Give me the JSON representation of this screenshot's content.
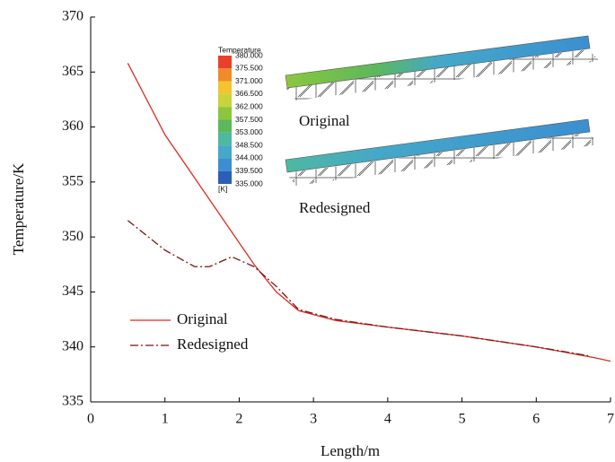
{
  "chart_data": {
    "type": "line",
    "x_label": "Length/m",
    "y_label": "Temperature/K",
    "xlim": [
      0,
      7
    ],
    "xticks": [
      0,
      1,
      2,
      3,
      4,
      5,
      6,
      7
    ],
    "ylim": [
      335,
      370
    ],
    "yticks": [
      335,
      340,
      345,
      350,
      355,
      360,
      365,
      370
    ],
    "legend": "center-left",
    "series": [
      {
        "name": "Original",
        "color": "#e02a22",
        "linestyle": "solid",
        "x": [
          0.5,
          1.0,
          2.2,
          2.5,
          2.8,
          3.3,
          4,
          5,
          6,
          6.8,
          7
        ],
        "values": [
          365.8,
          359.3,
          347.5,
          345.0,
          343.3,
          342.4,
          341.8,
          341.0,
          340.0,
          339.0,
          338.7
        ]
      },
      {
        "name": "Redesigned",
        "color": "#7a1515",
        "linestyle": "dashdot",
        "x": [
          0.5,
          1.0,
          1.4,
          1.6,
          1.9,
          2.2,
          2.5,
          2.8,
          3.3,
          4,
          5,
          6,
          6.7
        ],
        "values": [
          351.5,
          348.8,
          347.3,
          347.3,
          348.2,
          347.3,
          345.5,
          343.4,
          342.5,
          341.8,
          341.0,
          340.0,
          339.2
        ]
      }
    ],
    "inset": {
      "title": "Temperature",
      "unit": "[K]",
      "captions": [
        "Original",
        "Redesigned"
      ],
      "labels": [
        "380.000",
        "375.500",
        "371.000",
        "366.500",
        "362.000",
        "357.500",
        "353.000",
        "348.500",
        "344.000",
        "339.500",
        "335.000"
      ],
      "colors": [
        "#e8412a",
        "#f08a2a",
        "#f2c52e",
        "#c9d43a",
        "#8cc63f",
        "#5cb85c",
        "#4fb8a0",
        "#45a8c8",
        "#3b8fd0",
        "#2a5fb5"
      ]
    }
  }
}
